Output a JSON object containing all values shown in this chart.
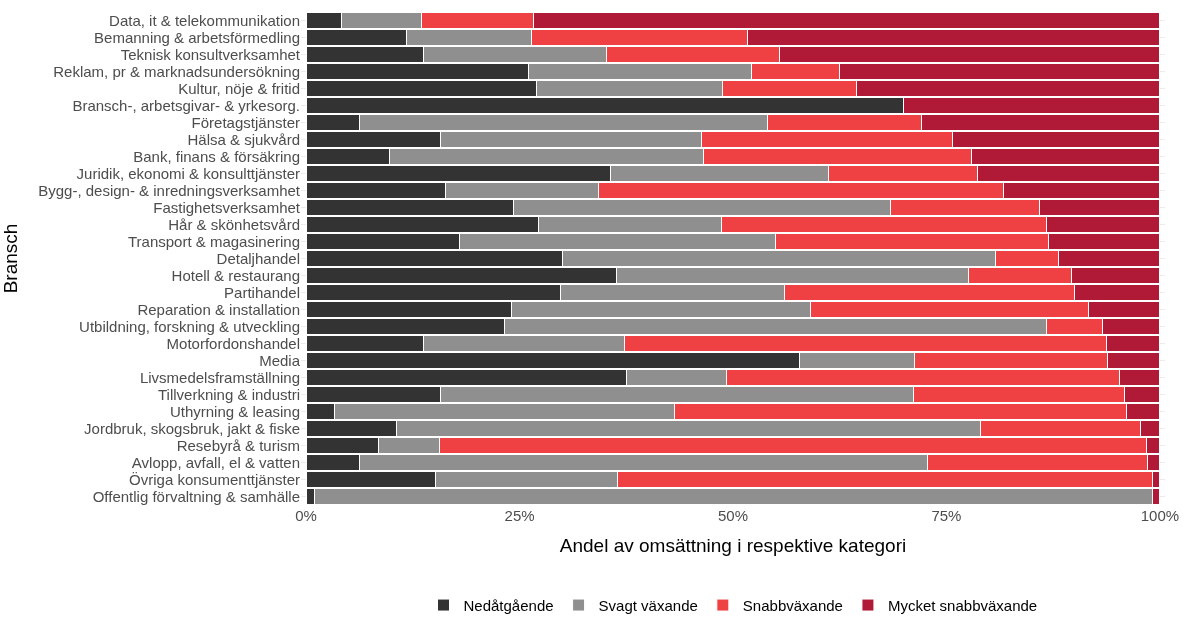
{
  "chart_data": {
    "type": "bar",
    "orientation": "horizontal",
    "stacked": true,
    "xlabel": "Andel av omsättning i respektive kategori",
    "ylabel": "Bransch",
    "categories": [
      "Data, it & telekommunikation",
      "Bemanning & arbetsförmedling",
      "Teknisk konsultverksamhet",
      "Reklam, pr & marknadsundersökning",
      "Kultur, nöje & fritid",
      "Bransch-, arbetsgivar- & yrkesorg.",
      "Företagstjänster",
      "Hälsa & sjukvård",
      "Bank, finans & försäkring",
      "Juridik, ekonomi & konsulttjänster",
      "Bygg-, design- & inredningsverksamhet",
      "Fastighetsverksamhet",
      "Hår & skönhetsvård",
      "Transport & magasinering",
      "Detaljhandel",
      "Hotell & restaurang",
      "Partihandel",
      "Reparation & installation",
      "Utbildning, forskning & utveckling",
      "Motorfordonshandel",
      "Media",
      "Livsmedelsframställning",
      "Tillverkning & industri",
      "Uthyrning & leasing",
      "Jordbruk, skogsbruk, jakt & fiske",
      "Resebyrå & turism",
      "Avlopp, avfall, el & vatten",
      "Övriga konsumenttjänster",
      "Offentlig förvaltning & samhälle"
    ],
    "series": [
      {
        "name": "Nedåtgående",
        "color": "#333333",
        "values": [
          4.2,
          11.7,
          13.8,
          26.1,
          27.0,
          70.0,
          6.2,
          15.7,
          9.8,
          35.6,
          16.3,
          24.3,
          27.2,
          18.0,
          30.0,
          36.4,
          29.8,
          24.0,
          23.2,
          13.7,
          57.8,
          37.5,
          15.7,
          3.3,
          10.6,
          8.5,
          6.3,
          15.2,
          1.0
        ]
      },
      {
        "name": "Svagt växande",
        "color": "#8f8f8f",
        "values": [
          9.3,
          14.7,
          21.4,
          26.1,
          21.8,
          0,
          47.8,
          30.6,
          36.8,
          25.6,
          18.0,
          44.1,
          21.5,
          37.0,
          50.7,
          41.2,
          26.2,
          35.1,
          63.5,
          23.6,
          13.4,
          11.7,
          55.4,
          39.8,
          68.4,
          7.1,
          66.5,
          21.3,
          98.1
        ]
      },
      {
        "name": "Snabbväxande",
        "color": "#ef4044",
        "values": [
          13.1,
          25.3,
          20.2,
          10.3,
          15.7,
          0,
          18.1,
          29.4,
          31.3,
          17.4,
          47.4,
          17.5,
          38.0,
          31.9,
          7.4,
          12.0,
          34.0,
          32.5,
          6.6,
          56.5,
          22.7,
          46.1,
          24.8,
          53.0,
          18.7,
          82.8,
          25.8,
          62.6,
          0
        ]
      },
      {
        "name": "Mycket snabbväxande",
        "color": "#b01a37",
        "values": [
          73.4,
          48.3,
          44.6,
          37.5,
          35.5,
          30.0,
          27.9,
          24.3,
          22.1,
          21.4,
          18.3,
          14.1,
          13.3,
          13.1,
          11.9,
          10.4,
          10.0,
          8.4,
          6.7,
          6.2,
          6.1,
          4.7,
          4.1,
          3.9,
          2.3,
          1.6,
          1.4,
          0.9,
          0.9
        ]
      }
    ],
    "xlim": [
      -0.6,
      100.6
    ],
    "xticks": [
      {
        "value": 0,
        "label": "0%"
      },
      {
        "value": 25,
        "label": "25%"
      },
      {
        "value": 50,
        "label": "50%"
      },
      {
        "value": 75,
        "label": "75%"
      },
      {
        "value": 100,
        "label": "100%"
      }
    ],
    "grid": true,
    "legend": "bottom"
  }
}
